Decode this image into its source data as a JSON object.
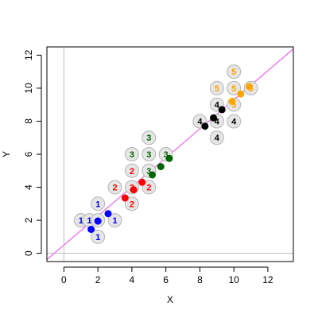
{
  "chart_data": {
    "type": "scatter",
    "title": "",
    "xlabel": "X",
    "ylabel": "Y",
    "xlim": [
      -1,
      13.5
    ],
    "ylim": [
      -0.5,
      12.5
    ],
    "x_ticks": [
      0,
      2,
      4,
      6,
      8,
      10,
      12
    ],
    "y_ticks": [
      0,
      2,
      4,
      6,
      8,
      10,
      12
    ],
    "grid": false,
    "reference_lines": {
      "vertical_x": 0,
      "horizontal_y": 0,
      "color": "#bebebe"
    },
    "fit_line": {
      "intercept": 0.5,
      "slope": 0.88,
      "color": "#ee82ee"
    },
    "label_style": {
      "circle_fill": "#e6e6e6",
      "circle_stroke": "#b4b4b4"
    },
    "groups": [
      {
        "label": "1",
        "color": "#0000ff",
        "labeled_points": [
          [
            1,
            2
          ],
          [
            1.5,
            2
          ],
          [
            2,
            2
          ],
          [
            2,
            3
          ],
          [
            3,
            2
          ],
          [
            2,
            1
          ]
        ],
        "dots": [
          [
            1.6,
            1.45
          ],
          [
            2.0,
            1.95
          ],
          [
            2.6,
            2.4
          ]
        ]
      },
      {
        "label": "2",
        "color": "#ff0000",
        "labeled_points": [
          [
            3,
            4
          ],
          [
            4,
            4
          ],
          [
            4,
            5
          ],
          [
            4,
            3
          ],
          [
            5,
            4
          ]
        ],
        "dots": [
          [
            3.6,
            3.35
          ],
          [
            4.1,
            3.85
          ],
          [
            4.6,
            4.3
          ]
        ]
      },
      {
        "label": "3",
        "color": "#006400",
        "labeled_points": [
          [
            4,
            6
          ],
          [
            5,
            6
          ],
          [
            5,
            7
          ],
          [
            5,
            5
          ],
          [
            6,
            6
          ]
        ],
        "dots": [
          [
            5.2,
            4.75
          ],
          [
            5.7,
            5.25
          ],
          [
            6.2,
            5.75
          ]
        ]
      },
      {
        "label": "4",
        "color": "#000000",
        "labeled_points": [
          [
            8,
            8
          ],
          [
            9,
            8
          ],
          [
            9,
            9
          ],
          [
            9,
            7
          ],
          [
            10,
            8
          ]
        ],
        "dots": [
          [
            8.3,
            7.7
          ],
          [
            8.8,
            8.2
          ],
          [
            9.3,
            8.7
          ]
        ]
      },
      {
        "label": "5",
        "color": "#ffa500",
        "labeled_points": [
          [
            9,
            10
          ],
          [
            10,
            10
          ],
          [
            10,
            11
          ],
          [
            10,
            9
          ],
          [
            11,
            10
          ]
        ],
        "dots": [
          [
            9.9,
            9.2
          ],
          [
            10.4,
            9.65
          ],
          [
            10.9,
            10.1
          ]
        ]
      }
    ]
  }
}
